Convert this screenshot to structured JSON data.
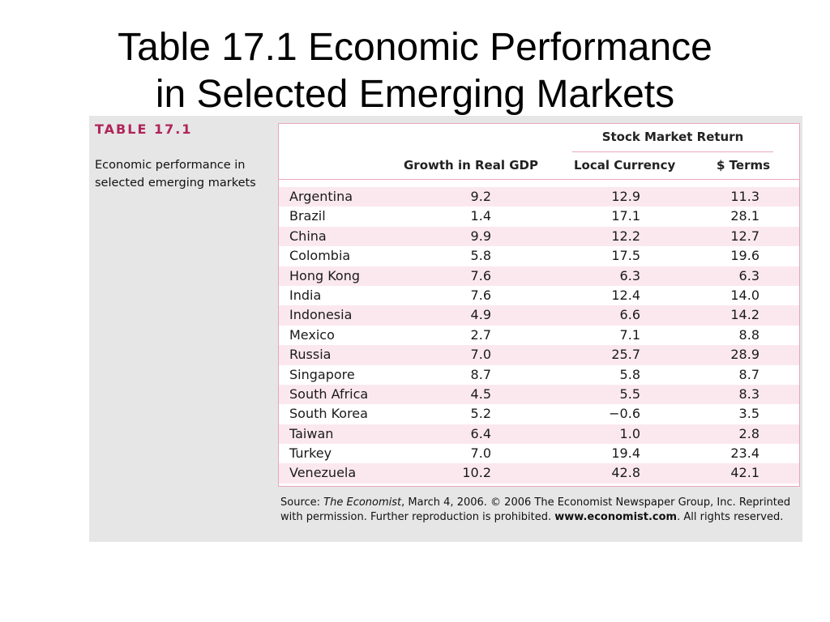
{
  "slide": {
    "title_line1": "Table 17.1 Economic Performance",
    "title_line2": "in Selected Emerging Markets"
  },
  "figure": {
    "table_label": "TABLE 17.1",
    "caption": "Economic performance in selected emerging markets",
    "group_header": "Stock Market Return",
    "columns": {
      "gdp": "Growth in Real GDP",
      "local": "Local Currency",
      "usd": "$ Terms"
    },
    "rows": [
      {
        "country": "Argentina",
        "gdp": "9.2",
        "local": "12.9",
        "usd": "11.3"
      },
      {
        "country": "Brazil",
        "gdp": "1.4",
        "local": "17.1",
        "usd": "28.1"
      },
      {
        "country": "China",
        "gdp": "9.9",
        "local": "12.2",
        "usd": "12.7"
      },
      {
        "country": "Colombia",
        "gdp": "5.8",
        "local": "17.5",
        "usd": "19.6"
      },
      {
        "country": "Hong Kong",
        "gdp": "7.6",
        "local": "6.3",
        "usd": "6.3"
      },
      {
        "country": "India",
        "gdp": "7.6",
        "local": "12.4",
        "usd": "14.0"
      },
      {
        "country": "Indonesia",
        "gdp": "4.9",
        "local": "6.6",
        "usd": "14.2"
      },
      {
        "country": "Mexico",
        "gdp": "2.7",
        "local": "7.1",
        "usd": "8.8"
      },
      {
        "country": "Russia",
        "gdp": "7.0",
        "local": "25.7",
        "usd": "28.9"
      },
      {
        "country": "Singapore",
        "gdp": "8.7",
        "local": "5.8",
        "usd": "8.7"
      },
      {
        "country": "South Africa",
        "gdp": "4.5",
        "local": "5.5",
        "usd": "8.3"
      },
      {
        "country": "South Korea",
        "gdp": "5.2",
        "local": "−0.6",
        "usd": "3.5"
      },
      {
        "country": "Taiwan",
        "gdp": "6.4",
        "local": "1.0",
        "usd": "2.8"
      },
      {
        "country": "Turkey",
        "gdp": "7.0",
        "local": "19.4",
        "usd": "23.4"
      },
      {
        "country": "Venezuela",
        "gdp": "10.2",
        "local": "42.8",
        "usd": "42.1"
      }
    ],
    "source": {
      "prefix": "Source: ",
      "publication": "The Economist",
      "middle": ", March 4, 2006. © 2006 The Economist Newspaper Group, Inc. Reprinted with permission. Further reproduction is prohibited. ",
      "url": "www.economist.com",
      "suffix": ". All rights reserved."
    }
  },
  "colors": {
    "accent": "#b0245a",
    "border": "#e8a6bf",
    "row_shade": "#fbe8ef",
    "panel_background": "#e6e6e6"
  }
}
